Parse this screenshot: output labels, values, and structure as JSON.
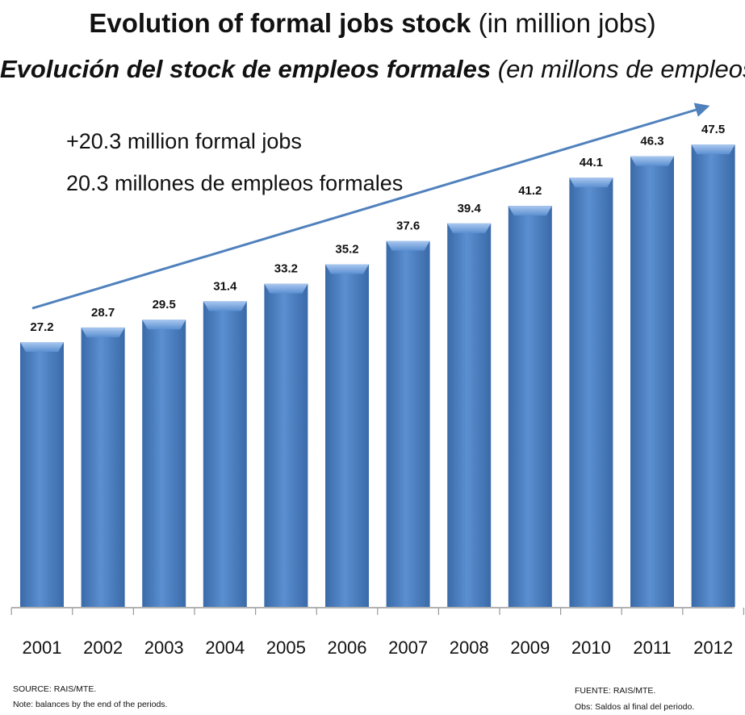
{
  "titles": {
    "line1_bold": "Evolution of formal jobs stock",
    "line1_normal": " (in million jobs)",
    "line2_bold": "Evolución del stock de empleos formales",
    "line2_normal": " (en millons de empleos)"
  },
  "annotations": {
    "en": "+20.3 million formal jobs",
    "es": "20.3 millones de empleos formales"
  },
  "footnotes": {
    "source_en": "SOURCE: RAIS/MTE.",
    "note_en": "Note: balances by the end of the periods.",
    "source_es": "FUENTE: RAIS/MTE.",
    "note_es": "Obs: Saldos al final del periodo."
  },
  "colors": {
    "bar": "#4f81bd",
    "bar_dark": "#3a6aa8",
    "bar_light": "#8db4e8",
    "arrow": "#4f81bd",
    "axis": "#999999"
  },
  "chart_data": {
    "type": "bar",
    "categories": [
      "2001",
      "2002",
      "2003",
      "2004",
      "2005",
      "2006",
      "2007",
      "2008",
      "2009",
      "2010",
      "2011",
      "2012"
    ],
    "values": [
      27.2,
      28.7,
      29.5,
      31.4,
      33.2,
      35.2,
      37.6,
      39.4,
      41.2,
      44.1,
      46.3,
      47.5
    ],
    "data_labels": [
      "27.2",
      "28.7",
      "29.5",
      "31.4",
      "33.2",
      "35.2",
      "37.6",
      "39.4",
      "41.2",
      "44.1",
      "46.3",
      "47.5"
    ],
    "ylim": [
      0,
      50
    ],
    "grid": false,
    "legend": "none",
    "trend_arrow": true
  }
}
